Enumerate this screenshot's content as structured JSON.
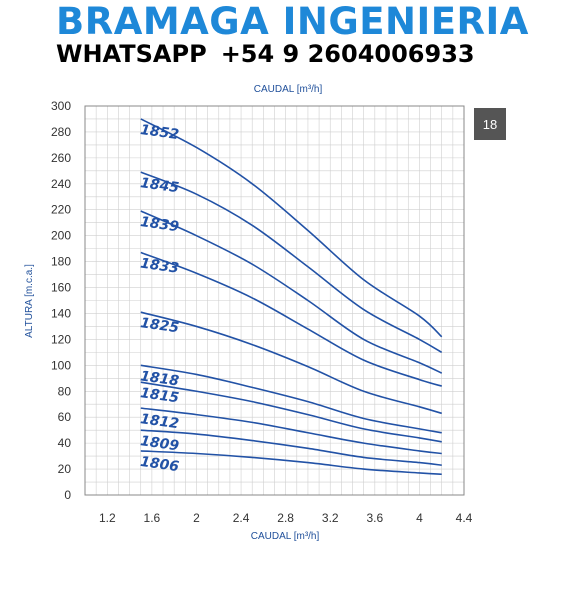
{
  "header": {
    "brand": "BRAMAGA INGENIERIA",
    "whatsapp_label": "WHATSAPP",
    "whatsapp_number": "+54 9 2604006933"
  },
  "badge": "18",
  "colors": {
    "curve": "#2252a6",
    "brand": "#1e88d8",
    "axis_title": "#1f4f9a",
    "grid": "#cfcfcf",
    "badge": "#555555"
  },
  "chart_data": {
    "type": "line",
    "xlabel_top": "CAUDAL [m³/h]",
    "xlabel": "CAUDAL [m³/h]",
    "ylabel": "ALTURA [m.c.a.]",
    "xlim": [
      1.0,
      4.4
    ],
    "ylim": [
      0,
      300
    ],
    "x_ticks": [
      "1.2",
      "1.6",
      "2",
      "2.4",
      "2.8",
      "3.2",
      "3.6",
      "4",
      "4.4"
    ],
    "y_ticks": [
      "0",
      "20",
      "40",
      "60",
      "80",
      "100",
      "120",
      "140",
      "160",
      "180",
      "200",
      "220",
      "240",
      "260",
      "280",
      "300"
    ],
    "grid": true,
    "series": [
      {
        "name": "1852",
        "x": [
          1.5,
          2.0,
          2.5,
          3.0,
          3.5,
          4.0,
          4.2
        ],
        "y": [
          290,
          268,
          240,
          204,
          166,
          138,
          122
        ]
      },
      {
        "name": "1845",
        "x": [
          1.5,
          2.0,
          2.5,
          3.0,
          3.5,
          4.0,
          4.2
        ],
        "y": [
          249,
          232,
          208,
          176,
          143,
          120,
          110
        ]
      },
      {
        "name": "1839",
        "x": [
          1.5,
          2.0,
          2.5,
          3.0,
          3.5,
          4.0,
          4.2
        ],
        "y": [
          219,
          200,
          178,
          150,
          120,
          102,
          94
        ]
      },
      {
        "name": "1833",
        "x": [
          1.5,
          2.0,
          2.5,
          3.0,
          3.5,
          4.0,
          4.2
        ],
        "y": [
          187,
          171,
          152,
          128,
          104,
          89,
          84
        ]
      },
      {
        "name": "1825",
        "x": [
          1.5,
          2.0,
          2.5,
          3.0,
          3.5,
          4.0,
          4.2
        ],
        "y": [
          141,
          130,
          116,
          99,
          80,
          68,
          63
        ]
      },
      {
        "name": "1818",
        "x": [
          1.5,
          2.0,
          2.5,
          3.0,
          3.5,
          4.0,
          4.2
        ],
        "y": [
          100,
          93,
          83,
          72,
          59,
          51,
          48
        ]
      },
      {
        "name": "1815",
        "x": [
          1.5,
          2.0,
          2.5,
          3.0,
          3.5,
          4.0,
          4.2
        ],
        "y": [
          87,
          80,
          72,
          62,
          51,
          44,
          41
        ]
      },
      {
        "name": "1812",
        "x": [
          1.5,
          2.0,
          2.5,
          3.0,
          3.5,
          4.0,
          4.2
        ],
        "y": [
          67,
          62,
          56,
          48,
          40,
          34,
          32
        ]
      },
      {
        "name": "1809",
        "x": [
          1.5,
          2.0,
          2.5,
          3.0,
          3.5,
          4.0,
          4.2
        ],
        "y": [
          50,
          47,
          42,
          36,
          29,
          25,
          23
        ]
      },
      {
        "name": "1806",
        "x": [
          1.5,
          2.0,
          2.5,
          3.0,
          3.5,
          4.0,
          4.2
        ],
        "y": [
          34,
          32,
          29,
          25,
          20,
          17,
          16
        ]
      }
    ]
  }
}
